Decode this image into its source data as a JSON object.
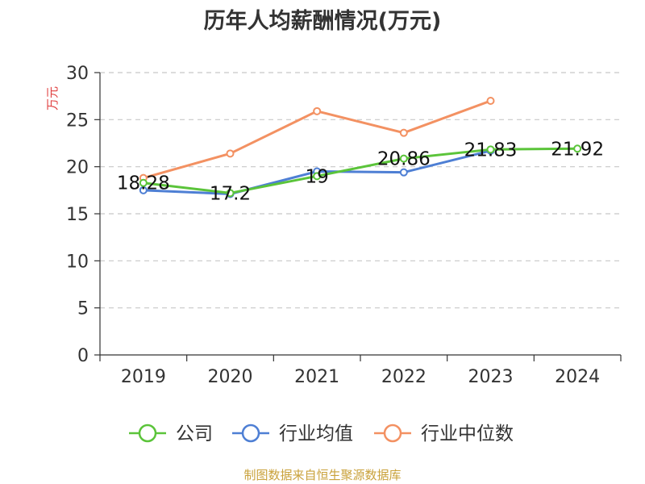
{
  "title": "历年人均薪酬情况(万元)",
  "source": "制图数据来自恒生聚源数据库",
  "chart_data": {
    "type": "line",
    "title": "历年人均薪酬情况(万元)",
    "ylabel": "万元",
    "ylim": [
      0,
      30
    ],
    "yticks": [
      "0",
      "5",
      "10",
      "15",
      "20",
      "25",
      "30"
    ],
    "categories": [
      "2019",
      "2020",
      "2021",
      "2022",
      "2023",
      "2024"
    ],
    "grid": true,
    "legend": "bottom",
    "series": [
      {
        "name": "公司",
        "color": "#5bc43a",
        "values": [
          18.28,
          17.2,
          19,
          20.86,
          21.83,
          21.92
        ],
        "labels": [
          "18.28",
          "17.2",
          "19",
          "20.86",
          "21.83",
          "21.92"
        ]
      },
      {
        "name": "行业均值",
        "color": "#4e7fd4",
        "values": [
          17.5,
          17.1,
          19.5,
          19.4,
          21.7,
          null
        ]
      },
      {
        "name": "行业中位数",
        "color": "#f39162",
        "values": [
          18.8,
          21.4,
          25.9,
          23.6,
          27.0,
          null
        ]
      }
    ]
  }
}
